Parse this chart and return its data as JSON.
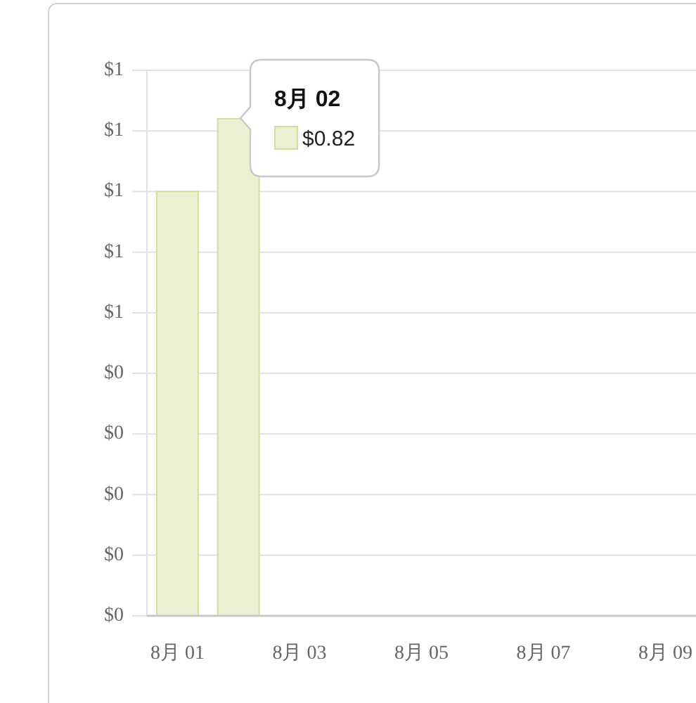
{
  "chart_data": {
    "type": "bar",
    "categories": [
      "8月 01",
      null,
      "8月 03",
      null,
      "8月 05",
      null,
      "8月 07",
      null,
      "8月 09"
    ],
    "series": [
      {
        "color": "#ebf0d2",
        "values": [
          0.7,
          0.82,
          null,
          null,
          null,
          null,
          null,
          null,
          null
        ]
      }
    ],
    "ylim": [
      0,
      0.9
    ],
    "yticks": [
      {
        "value": 0,
        "label": "$0"
      },
      {
        "value": 0.1,
        "label": "$0"
      },
      {
        "value": 0.2,
        "label": "$0"
      },
      {
        "value": 0.3,
        "label": "$0"
      },
      {
        "value": 0.4,
        "label": "$0"
      },
      {
        "value": 0.5,
        "label": "$1"
      },
      {
        "value": 0.6,
        "label": "$1"
      },
      {
        "value": 0.7,
        "label": "$1"
      },
      {
        "value": 0.8,
        "label": "$1"
      },
      {
        "value": 0.9,
        "label": "$1"
      }
    ],
    "grid": "y",
    "annotations": [
      "8月 02",
      "$0.82"
    ]
  }
}
